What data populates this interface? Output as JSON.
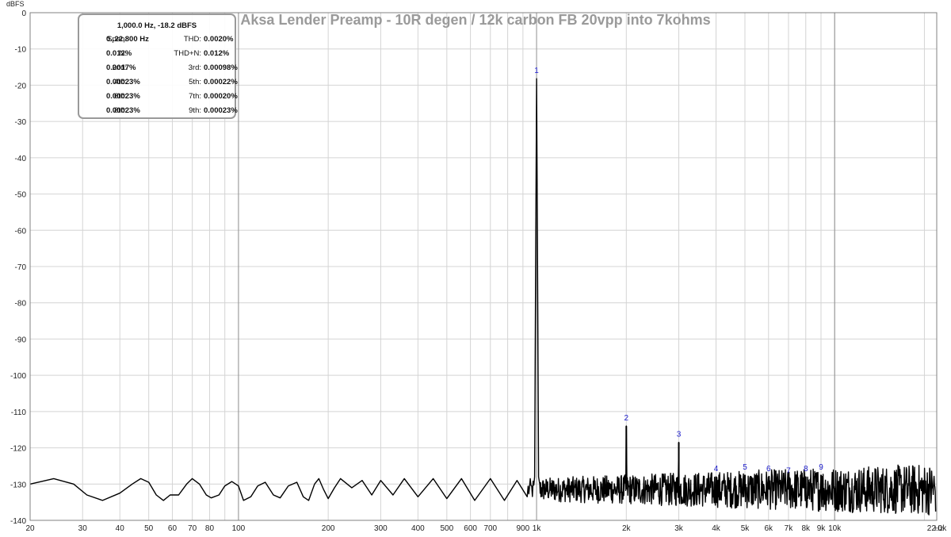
{
  "chart_data": {
    "type": "line",
    "title": "Aksa Lender Preamp - 10R degen / 12k carbon FB 20vpp into 7kohms",
    "ylabel": "dBFS",
    "xlabel": "",
    "x_unit": "Hz",
    "x_scale": "log",
    "xlim": [
      20,
      22000
    ],
    "ylim": [
      -140,
      0
    ],
    "grid": true,
    "y_ticks": [
      0,
      -10,
      -20,
      -30,
      -40,
      -50,
      -60,
      -70,
      -80,
      -90,
      -100,
      -110,
      -120,
      -130,
      -140
    ],
    "x_ticks": [
      {
        "v": 20,
        "label": "20"
      },
      {
        "v": 30,
        "label": "30"
      },
      {
        "v": 40,
        "label": "40"
      },
      {
        "v": 50,
        "label": "50"
      },
      {
        "v": 60,
        "label": "60"
      },
      {
        "v": 70,
        "label": "70"
      },
      {
        "v": 80,
        "label": "80"
      },
      {
        "v": 100,
        "label": "100"
      },
      {
        "v": 200,
        "label": "200"
      },
      {
        "v": 300,
        "label": "300"
      },
      {
        "v": 400,
        "label": "400"
      },
      {
        "v": 500,
        "label": "500"
      },
      {
        "v": 600,
        "label": "600"
      },
      {
        "v": 700,
        "label": "700"
      },
      {
        "v": 900,
        "label": "900"
      },
      {
        "v": 1000,
        "label": "1k"
      },
      {
        "v": 2000,
        "label": "2k"
      },
      {
        "v": 3000,
        "label": "3k"
      },
      {
        "v": 4000,
        "label": "4k"
      },
      {
        "v": 5000,
        "label": "5k"
      },
      {
        "v": 6000,
        "label": "6k"
      },
      {
        "v": 7000,
        "label": "7k"
      },
      {
        "v": 8000,
        "label": "8k"
      },
      {
        "v": 9000,
        "label": "9k"
      },
      {
        "v": 10000,
        "label": "10k"
      },
      {
        "v": 22000,
        "label": "22.0k"
      }
    ],
    "noise_floor_db": -131.5,
    "harmonics": [
      {
        "label": "1",
        "freq": 1000,
        "db": -18.2
      },
      {
        "label": "2",
        "freq": 2000,
        "db": -114
      },
      {
        "label": "3",
        "freq": 3000,
        "db": -118.5
      },
      {
        "label": "4",
        "freq": 4000,
        "db": -128
      },
      {
        "label": "5",
        "freq": 5000,
        "db": -127.5
      },
      {
        "label": "6",
        "freq": 6000,
        "db": -128
      },
      {
        "label": "7",
        "freq": 7000,
        "db": -128.5
      },
      {
        "label": "8",
        "freq": 8000,
        "db": -128
      },
      {
        "label": "9",
        "freq": 9000,
        "db": -127.5
      }
    ],
    "series": [
      {
        "values": [
          [
            20,
            -130
          ],
          [
            24,
            -128.5
          ],
          [
            28,
            -130
          ],
          [
            31,
            -133
          ],
          [
            35,
            -134.5
          ],
          [
            40,
            -132.5
          ],
          [
            44,
            -130
          ],
          [
            47,
            -128.5
          ],
          [
            50,
            -129.5
          ],
          [
            53,
            -133
          ],
          [
            56,
            -134.5
          ],
          [
            59,
            -133
          ],
          [
            63,
            -133
          ],
          [
            67,
            -130
          ],
          [
            70,
            -128.5
          ],
          [
            74,
            -130
          ],
          [
            78,
            -133
          ],
          [
            81,
            -133.8
          ],
          [
            86,
            -133
          ],
          [
            90,
            -130.5
          ],
          [
            95,
            -129.3
          ],
          [
            100,
            -130.5
          ],
          [
            104,
            -134.5
          ],
          [
            110,
            -133.5
          ],
          [
            116,
            -130.5
          ],
          [
            123,
            -129.5
          ],
          [
            131,
            -133
          ],
          [
            138,
            -133.8
          ],
          [
            147,
            -130.5
          ],
          [
            157,
            -129.5
          ],
          [
            165,
            -133.5
          ],
          [
            172,
            -134.5
          ],
          [
            180,
            -130
          ],
          [
            186,
            -128.5
          ],
          [
            193,
            -131.5
          ],
          [
            200,
            -134
          ],
          [
            210,
            -131
          ],
          [
            220,
            -128.5
          ],
          [
            240,
            -131
          ],
          [
            260,
            -129
          ],
          [
            280,
            -133
          ],
          [
            300,
            -129
          ],
          [
            330,
            -133
          ],
          [
            360,
            -128.5
          ],
          [
            400,
            -133.5
          ],
          [
            450,
            -128.5
          ],
          [
            500,
            -134
          ],
          [
            560,
            -128.5
          ],
          [
            620,
            -134.5
          ],
          [
            700,
            -128.5
          ],
          [
            780,
            -134.5
          ],
          [
            860,
            -129
          ],
          [
            930,
            -133.5
          ]
        ]
      }
    ],
    "info_box": {
      "header": "1,000.0 Hz, -18.2 dBFS",
      "rows": [
        [
          {
            "label": "Span:",
            "value": "0..22,800 Hz"
          },
          {
            "label": "THD:",
            "value": "0.0020%"
          }
        ],
        [
          {
            "label": "N:",
            "value": "0.012%"
          },
          {
            "label": "THD+N:",
            "value": "0.012%"
          }
        ],
        [
          {
            "label": "2nd:",
            "value": "0.0017%"
          },
          {
            "label": "3rd:",
            "value": "0.00098%"
          }
        ],
        [
          {
            "label": "4th:",
            "value": "0.00023%"
          },
          {
            "label": "5th:",
            "value": "0.00022%"
          }
        ],
        [
          {
            "label": "6th:",
            "value": "0.00023%"
          },
          {
            "label": "7th:",
            "value": "0.00020%"
          }
        ],
        [
          {
            "label": "8th:",
            "value": "0.00023%"
          },
          {
            "label": "9th:",
            "value": "0.00023%"
          }
        ]
      ]
    }
  }
}
